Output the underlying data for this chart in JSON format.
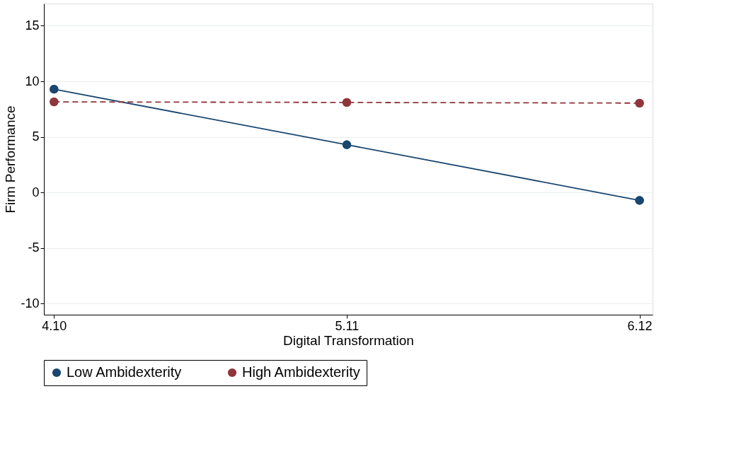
{
  "chart_data": {
    "type": "line",
    "xlabel": "Digital Transformation",
    "ylabel": "Firm Performance",
    "x": [
      4.1,
      5.11,
      6.12
    ],
    "series": [
      {
        "name": "Low Ambidexterity",
        "color": "#1a476f",
        "values": [
          9.29,
          4.29,
          -0.71
        ],
        "line_style": "solid"
      },
      {
        "name": "High Ambidexterity",
        "color": "#90353b",
        "values": [
          8.15,
          8.1,
          8.04
        ],
        "line_style": "dashed"
      }
    ],
    "xlim": [
      4.065,
      6.165
    ],
    "xticks": [
      {
        "value": 4.1,
        "label": "4.10"
      },
      {
        "value": 5.11,
        "label": "5.11"
      },
      {
        "value": 6.12,
        "label": "6.12"
      }
    ],
    "ylim": [
      -11,
      17
    ],
    "yticks": [
      -10,
      -5,
      0,
      5,
      10,
      15
    ],
    "grid": "y",
    "legend": "bottom",
    "marker": "circle"
  }
}
